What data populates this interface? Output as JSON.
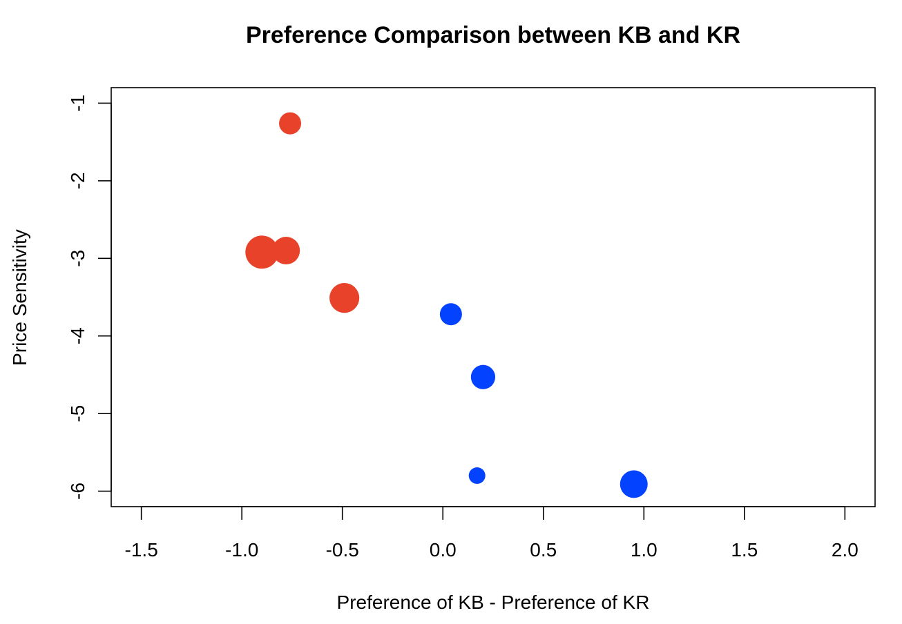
{
  "chart_data": {
    "type": "scatter",
    "title": "Preference Comparison between KB and KR",
    "xlabel": "Preference of KB - Preference of KR",
    "ylabel": "Price Sensitivity",
    "xlim": [
      -1.65,
      2.15
    ],
    "ylim": [
      -6.2,
      -0.8
    ],
    "x_ticks": [
      -1.5,
      -1.0,
      -0.5,
      0.0,
      0.5,
      1.0,
      1.5,
      2.0
    ],
    "x_tick_labels": [
      "-1.5",
      "-1.0",
      "-0.5",
      "0.0",
      "0.5",
      "1.0",
      "1.5",
      "2.0"
    ],
    "y_ticks": [
      -1,
      -2,
      -3,
      -4,
      -5,
      -6
    ],
    "y_tick_labels": [
      "-1",
      "-2",
      "-3",
      "-4",
      "-5",
      "-6"
    ],
    "grid": false,
    "legend": null,
    "colors": {
      "kr_preferred": "#E8432A",
      "kb_preferred": "#0343FF"
    },
    "points": [
      {
        "x": -0.76,
        "y": -1.26,
        "size": 1.0,
        "color": "#E8432A"
      },
      {
        "x": -0.9,
        "y": -2.92,
        "size": 1.5,
        "color": "#E8432A"
      },
      {
        "x": -0.78,
        "y": -2.9,
        "size": 1.25,
        "color": "#E8432A"
      },
      {
        "x": -0.49,
        "y": -3.51,
        "size": 1.35,
        "color": "#E8432A"
      },
      {
        "x": 0.04,
        "y": -3.72,
        "size": 1.0,
        "color": "#0343FF"
      },
      {
        "x": 0.2,
        "y": -4.53,
        "size": 1.1,
        "color": "#0343FF"
      },
      {
        "x": 0.17,
        "y": -5.8,
        "size": 0.75,
        "color": "#0343FF"
      },
      {
        "x": 0.95,
        "y": -5.91,
        "size": 1.25,
        "color": "#0343FF"
      }
    ]
  }
}
